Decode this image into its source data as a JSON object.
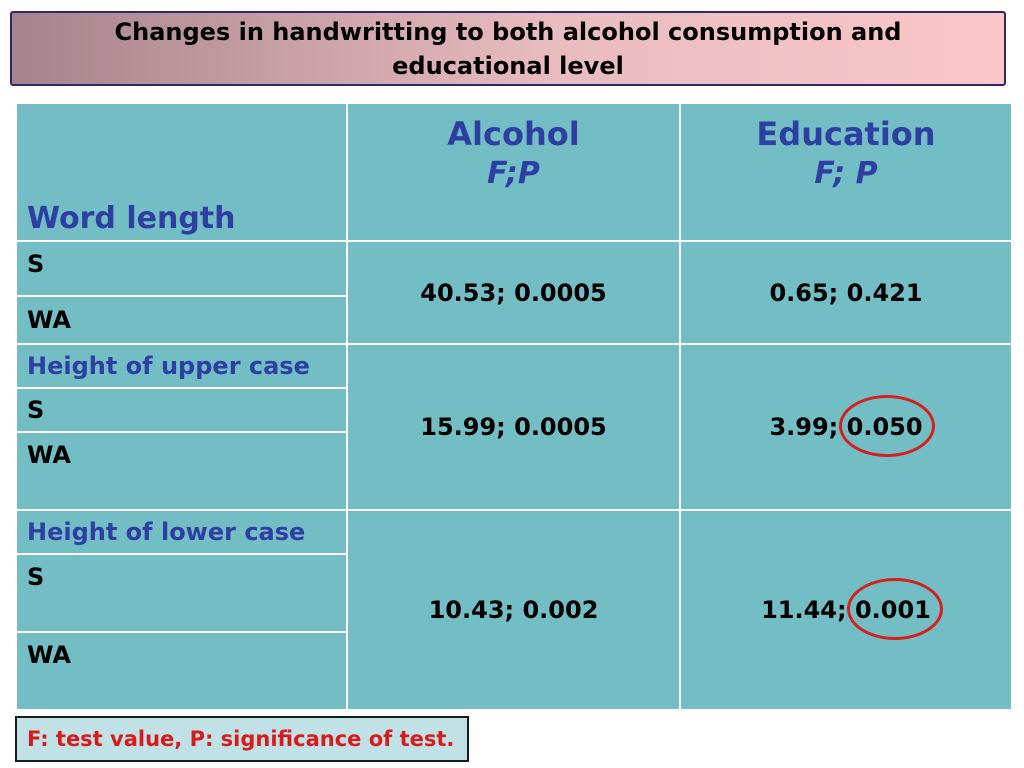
{
  "title": "Changes in handwritting to both alcohol consumption and educational level",
  "header": {
    "row_label": "Word length",
    "alcohol": "Alcohol",
    "alcohol_sub": "F;P",
    "education": "Education",
    "education_sub": "F; P"
  },
  "groups": [
    {
      "rows": [
        "S",
        "WA"
      ],
      "alcohol": "40.53; 0.0005",
      "education": "0.65; 0.421"
    },
    {
      "group_label": "Height of upper case",
      "rows": [
        "S",
        "WA"
      ],
      "alcohol": "15.99; 0.0005",
      "education_f": "3.99;",
      "education_p": "0.050",
      "education_p_circled": true
    },
    {
      "group_label": "Height of lower case",
      "rows": [
        "S",
        "WA"
      ],
      "alcohol": "10.43; 0.002",
      "education_f": "11.44;",
      "education_p": "0.001",
      "education_p_circled": true
    }
  ],
  "footnote": "F: test value, P: significance of test.",
  "colors": {
    "table_fill": "#72bec4",
    "header_text": "#2e3ea2",
    "highlight_circle": "#d4201e",
    "footnote_text": "#d91a1a"
  }
}
